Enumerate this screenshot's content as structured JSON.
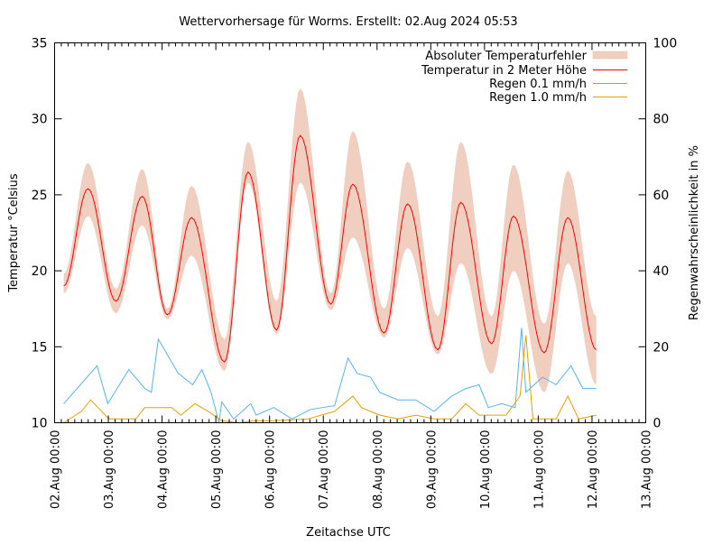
{
  "chart_data": {
    "type": "line",
    "title": "Wettervorhersage für Worms. Erstellt: 02.Aug 2024 05:53",
    "xlabel": "Zeitachse UTC",
    "ylabel": "Temperatur °Celsius",
    "y2label": "Regenwahrscheinlichkeit in %",
    "xlim_days": [
      0,
      11
    ],
    "ylim": [
      10,
      35
    ],
    "y2lim": [
      0,
      100
    ],
    "x_tick_labels": [
      "02.Aug 00:00",
      "03.Aug 00:00",
      "04.Aug 00:00",
      "05.Aug 00:00",
      "06.Aug 00:00",
      "07.Aug 00:00",
      "08.Aug 00:00",
      "09.Aug 00:00",
      "10.Aug 00:00",
      "11.Aug 00:00",
      "12.Aug 00:00",
      "13.Aug 00:00"
    ],
    "y_ticks": [
      10,
      15,
      20,
      25,
      30,
      35
    ],
    "y2_ticks": [
      0,
      20,
      40,
      60,
      80,
      100
    ],
    "legend_position": "top-right",
    "legend": [
      "Absoluter Temperaturfehler",
      "Temperatur in 2 Meter Höhe",
      "Regen 0.1 mm/h",
      "Regen 1.0 mm/h"
    ],
    "colors": {
      "band": "#f0cfc0",
      "temp": "#ff0000",
      "rain01": "#56b4e9",
      "rain10": "#e69f00"
    },
    "temperature": {
      "x_days": [
        0.17,
        0.62,
        1.14,
        1.63,
        2.1,
        2.55,
        3.16,
        3.6,
        4.13,
        4.57,
        5.14,
        5.55,
        6.13,
        6.57,
        7.13,
        7.56,
        8.13,
        8.54,
        9.11,
        9.55,
        10.08
      ],
      "values": [
        19.0,
        25.4,
        18.0,
        24.9,
        17.1,
        23.5,
        14.0,
        26.5,
        16.1,
        28.9,
        17.8,
        25.7,
        15.9,
        24.4,
        14.8,
        24.5,
        15.2,
        23.6,
        14.6,
        23.5,
        14.8
      ],
      "lower": [
        18.5,
        23.6,
        17.2,
        23.0,
        16.8,
        21.0,
        13.4,
        25.8,
        15.8,
        25.8,
        17.4,
        22.2,
        15.6,
        21.5,
        14.5,
        20.5,
        13.2,
        20.0,
        12.0,
        20.5,
        12.5
      ],
      "upper": [
        19.8,
        27.1,
        18.8,
        26.7,
        17.5,
        25.6,
        15.5,
        28.5,
        18.0,
        32.0,
        18.5,
        29.2,
        17.5,
        27.2,
        17.0,
        28.5,
        17.0,
        27.0,
        16.5,
        26.6,
        17.0
      ]
    },
    "rain_01": {
      "x_days": [
        0.17,
        0.79,
        0.99,
        1.38,
        1.68,
        1.8,
        1.93,
        2.3,
        2.57,
        2.74,
        2.91,
        3.06,
        3.11,
        3.33,
        3.65,
        3.75,
        4.08,
        4.42,
        4.76,
        5.21,
        5.46,
        5.63,
        5.88,
        6.05,
        6.39,
        6.72,
        7.06,
        7.39,
        7.65,
        7.9,
        8.07,
        8.32,
        8.57,
        8.69,
        8.77,
        9.08,
        9.33,
        9.61,
        9.83,
        10.08
      ],
      "values": [
        5,
        15,
        5,
        14,
        9,
        8,
        22,
        13,
        10,
        14,
        8,
        0,
        5.5,
        1,
        5,
        2,
        4,
        1,
        3.5,
        4.5,
        17,
        13,
        12,
        8,
        6,
        6,
        3,
        7,
        9,
        10,
        4,
        5,
        4,
        25,
        8,
        12,
        10,
        15,
        9,
        9
      ]
    },
    "rain_10": {
      "x_days": [
        0.17,
        0.5,
        0.67,
        1.01,
        1.51,
        1.68,
        1.93,
        2.18,
        2.35,
        2.61,
        2.86,
        3.11,
        3.45,
        3.7,
        4.03,
        4.71,
        5.21,
        5.55,
        5.71,
        6.05,
        6.39,
        6.72,
        7.06,
        7.39,
        7.65,
        7.9,
        8.4,
        8.66,
        8.77,
        8.9,
        9.33,
        9.55,
        9.75,
        10.08
      ],
      "values": [
        0,
        3,
        6,
        1,
        1,
        4,
        4,
        4,
        2,
        5,
        3,
        0.5,
        0,
        0.5,
        0.5,
        1,
        3,
        7,
        4,
        2,
        1,
        2,
        1,
        1,
        5,
        2,
        2,
        7,
        23,
        1,
        1,
        7,
        1,
        2
      ]
    }
  }
}
